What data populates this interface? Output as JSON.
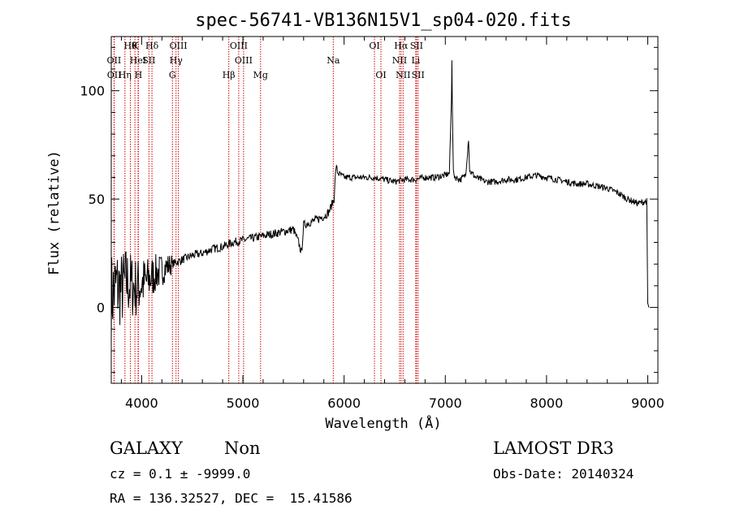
{
  "chart_data": {
    "type": "line",
    "title": "spec-56741-VB136N15V1_sp04-020.fits",
    "xlabel": "Wavelength (Å)",
    "ylabel": "Flux (relative)",
    "xlim": [
      3700,
      9100
    ],
    "ylim": [
      -35,
      125
    ],
    "xticks": [
      4000,
      5000,
      6000,
      7000,
      8000,
      9000
    ],
    "yticks": [
      0,
      50,
      100
    ],
    "series": [
      {
        "name": "flux",
        "color": "#000000",
        "x": [
          3700,
          3750,
          3800,
          3850,
          3900,
          3950,
          4000,
          4050,
          4100,
          4150,
          4200,
          4250,
          4300,
          4400,
          4500,
          4600,
          4700,
          4800,
          4900,
          5000,
          5100,
          5200,
          5300,
          5400,
          5500,
          5550,
          5580,
          5600,
          5700,
          5800,
          5850,
          5900,
          5920,
          5940,
          6000,
          6100,
          6200,
          6300,
          6400,
          6500,
          6600,
          6700,
          6800,
          6900,
          7000,
          7040,
          7060,
          7065,
          7070,
          7080,
          7100,
          7150,
          7200,
          7230,
          7240,
          7300,
          7400,
          7500,
          7600,
          7700,
          7800,
          7900,
          8000,
          8100,
          8200,
          8300,
          8400,
          8500,
          8600,
          8700,
          8800,
          8900,
          8990,
          9000,
          9010
        ],
        "y": [
          5,
          10,
          8,
          12,
          10,
          9,
          11,
          12,
          14,
          16,
          17,
          19,
          20,
          22,
          24,
          25,
          27,
          28,
          30,
          31,
          32,
          33,
          34,
          35,
          36,
          30,
          25,
          38,
          40,
          42,
          44,
          50,
          65,
          62,
          60,
          60,
          60,
          60,
          59,
          58,
          59,
          59,
          60,
          60,
          61,
          62,
          95,
          115,
          90,
          62,
          60,
          59,
          61,
          78,
          63,
          60,
          58,
          58,
          59,
          59,
          60,
          61,
          60,
          59,
          58,
          57,
          57,
          56,
          55,
          53,
          50,
          48,
          49,
          2,
          0
        ]
      }
    ],
    "spectral_lines": [
      {
        "label": "Hθ",
        "wavelength": 3889,
        "row": 0
      },
      {
        "label": "K",
        "wavelength": 3934,
        "row": 0
      },
      {
        "label": "Hδ",
        "wavelength": 4102,
        "row": 0
      },
      {
        "label": "OIII",
        "wavelength": 4363,
        "row": 0
      },
      {
        "label": "OIII",
        "wavelength": 4959,
        "row": 0
      },
      {
        "label": "OI",
        "wavelength": 6300,
        "row": 0
      },
      {
        "label": "Hα",
        "wavelength": 6563,
        "row": 0
      },
      {
        "label": "SII",
        "wavelength": 6716,
        "row": 0
      },
      {
        "label": "OII",
        "wavelength": 3727,
        "row": 1
      },
      {
        "label": "HeI",
        "wavelength": 3965,
        "row": 1
      },
      {
        "label": "SII",
        "wavelength": 4072,
        "row": 1
      },
      {
        "label": "Hγ",
        "wavelength": 4340,
        "row": 1
      },
      {
        "label": "OIII",
        "wavelength": 5007,
        "row": 1
      },
      {
        "label": "Na",
        "wavelength": 5893,
        "row": 1
      },
      {
        "label": "NII",
        "wavelength": 6548,
        "row": 1
      },
      {
        "label": "Li",
        "wavelength": 6708,
        "row": 1
      },
      {
        "label": "OII",
        "wavelength": 3729,
        "row": 2
      },
      {
        "label": "Hη",
        "wavelength": 3835,
        "row": 2
      },
      {
        "label": "H",
        "wavelength": 3968,
        "row": 2
      },
      {
        "label": "G",
        "wavelength": 4304,
        "row": 2
      },
      {
        "label": "Hβ",
        "wavelength": 4861,
        "row": 2
      },
      {
        "label": "Mg",
        "wavelength": 5175,
        "row": 2
      },
      {
        "label": "OI",
        "wavelength": 6364,
        "row": 2
      },
      {
        "label": "NII",
        "wavelength": 6583,
        "row": 2
      },
      {
        "label": "SII",
        "wavelength": 6731,
        "row": 2
      }
    ],
    "line_marker_color": "#cc0000"
  },
  "info": {
    "class": "GALAXY",
    "subclass": "Non",
    "survey": "LAMOST DR3",
    "cz": "cz = 0.1 ± -9999.0",
    "obs_date": "Obs-Date: 20140324",
    "coords": "RA = 136.32527, DEC =  15.41586"
  }
}
